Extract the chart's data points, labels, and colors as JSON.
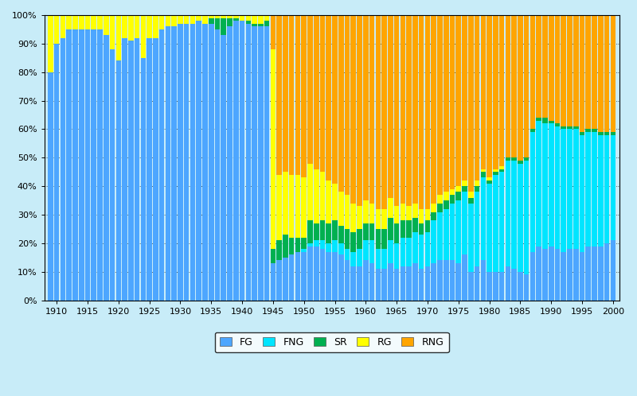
{
  "background_color": "#c8ecf8",
  "plot_bg_color": "#c8ecf8",
  "colors": {
    "FG": "#4da6ff",
    "FNG": "#00e5ff",
    "SR": "#00b050",
    "RG": "#ffff00",
    "RNG": "#ffa500"
  },
  "legend_labels": [
    "FG",
    "FNG",
    "SR",
    "RG",
    "RNG"
  ],
  "years": [
    1909,
    1910,
    1911,
    1912,
    1913,
    1914,
    1915,
    1916,
    1917,
    1918,
    1919,
    1920,
    1921,
    1922,
    1923,
    1924,
    1925,
    1926,
    1927,
    1928,
    1929,
    1930,
    1931,
    1932,
    1933,
    1934,
    1935,
    1936,
    1937,
    1938,
    1939,
    1940,
    1941,
    1942,
    1943,
    1944,
    1945,
    1946,
    1947,
    1948,
    1949,
    1950,
    1951,
    1952,
    1953,
    1954,
    1955,
    1956,
    1957,
    1958,
    1959,
    1960,
    1961,
    1962,
    1963,
    1964,
    1965,
    1966,
    1967,
    1968,
    1969,
    1970,
    1971,
    1972,
    1973,
    1974,
    1975,
    1976,
    1977,
    1978,
    1979,
    1980,
    1981,
    1982,
    1983,
    1984,
    1985,
    1986,
    1987,
    1988,
    1989,
    1990,
    1991,
    1992,
    1993,
    1994,
    1995,
    1996,
    1997,
    1998,
    1999,
    2000
  ],
  "FG": [
    80,
    90,
    92,
    95,
    95,
    95,
    95,
    95,
    95,
    93,
    88,
    84,
    92,
    91,
    92,
    85,
    92,
    92,
    95,
    96,
    96,
    97,
    97,
    97,
    98,
    97,
    97,
    95,
    93,
    96,
    98,
    98,
    97,
    96,
    96,
    96,
    13,
    14,
    15,
    16,
    17,
    17,
    19,
    19,
    18,
    17,
    17,
    16,
    14,
    12,
    12,
    14,
    13,
    11,
    11,
    13,
    11,
    12,
    12,
    13,
    11,
    12,
    13,
    14,
    14,
    14,
    13,
    16,
    10,
    12,
    14,
    10,
    10,
    10,
    12,
    11,
    10,
    9,
    17,
    19,
    18,
    19,
    18,
    17,
    18,
    18,
    17,
    19,
    19,
    19,
    20,
    21
  ],
  "FNG": [
    0,
    0,
    0,
    0,
    0,
    0,
    0,
    0,
    0,
    0,
    0,
    0,
    0,
    0,
    0,
    0,
    0,
    0,
    0,
    0,
    0,
    0,
    0,
    0,
    0,
    0,
    0,
    0,
    0,
    0,
    0,
    0,
    0,
    0,
    0,
    0,
    0,
    0,
    0,
    0,
    0,
    1,
    1,
    2,
    3,
    3,
    4,
    4,
    4,
    5,
    6,
    7,
    8,
    7,
    7,
    8,
    9,
    10,
    10,
    11,
    12,
    12,
    15,
    17,
    18,
    20,
    22,
    22,
    24,
    26,
    29,
    31,
    34,
    35,
    37,
    38,
    38,
    40,
    42,
    44,
    44,
    43,
    43,
    43,
    42,
    42,
    41,
    40,
    40,
    39,
    38,
    37
  ],
  "SR": [
    0,
    0,
    0,
    0,
    0,
    0,
    0,
    0,
    0,
    0,
    0,
    0,
    0,
    0,
    0,
    0,
    0,
    0,
    0,
    0,
    0,
    0,
    0,
    0,
    0,
    0,
    2,
    4,
    6,
    3,
    1,
    0,
    1,
    1,
    1,
    2,
    5,
    7,
    8,
    6,
    5,
    4,
    8,
    6,
    7,
    7,
    7,
    6,
    7,
    7,
    7,
    6,
    6,
    7,
    7,
    8,
    7,
    6,
    6,
    5,
    4,
    4,
    3,
    3,
    3,
    3,
    3,
    2,
    2,
    2,
    2,
    1,
    1,
    1,
    1,
    1,
    1,
    1,
    1,
    1,
    2,
    1,
    1,
    1,
    1,
    1,
    1,
    1,
    1,
    1,
    1,
    1
  ],
  "RG": [
    20,
    10,
    8,
    5,
    5,
    5,
    5,
    5,
    5,
    7,
    12,
    16,
    8,
    9,
    8,
    15,
    8,
    8,
    5,
    4,
    4,
    3,
    3,
    3,
    2,
    3,
    1,
    1,
    1,
    1,
    1,
    2,
    2,
    3,
    3,
    2,
    70,
    23,
    22,
    22,
    22,
    21,
    20,
    19,
    17,
    15,
    13,
    12,
    12,
    10,
    8,
    8,
    7,
    7,
    7,
    7,
    6,
    6,
    5,
    5,
    5,
    4,
    3,
    3,
    3,
    2,
    2,
    2,
    2,
    2,
    1,
    1,
    1,
    1,
    0,
    0,
    0,
    0,
    0,
    0,
    0,
    0,
    0,
    0,
    0,
    0,
    0,
    0,
    0,
    0,
    0,
    0
  ],
  "RNG": [
    0,
    0,
    0,
    0,
    0,
    0,
    0,
    0,
    0,
    0,
    0,
    0,
    0,
    0,
    0,
    0,
    0,
    0,
    0,
    0,
    0,
    0,
    0,
    0,
    0,
    0,
    0,
    0,
    0,
    0,
    0,
    0,
    0,
    0,
    0,
    0,
    12,
    56,
    55,
    56,
    56,
    57,
    52,
    54,
    55,
    58,
    59,
    62,
    63,
    66,
    67,
    65,
    66,
    68,
    68,
    64,
    67,
    66,
    67,
    66,
    68,
    68,
    66,
    63,
    62,
    61,
    60,
    58,
    62,
    58,
    54,
    57,
    54,
    53,
    50,
    50,
    51,
    50,
    40,
    36,
    36,
    37,
    38,
    39,
    39,
    39,
    41,
    40,
    40,
    41,
    41,
    41
  ]
}
